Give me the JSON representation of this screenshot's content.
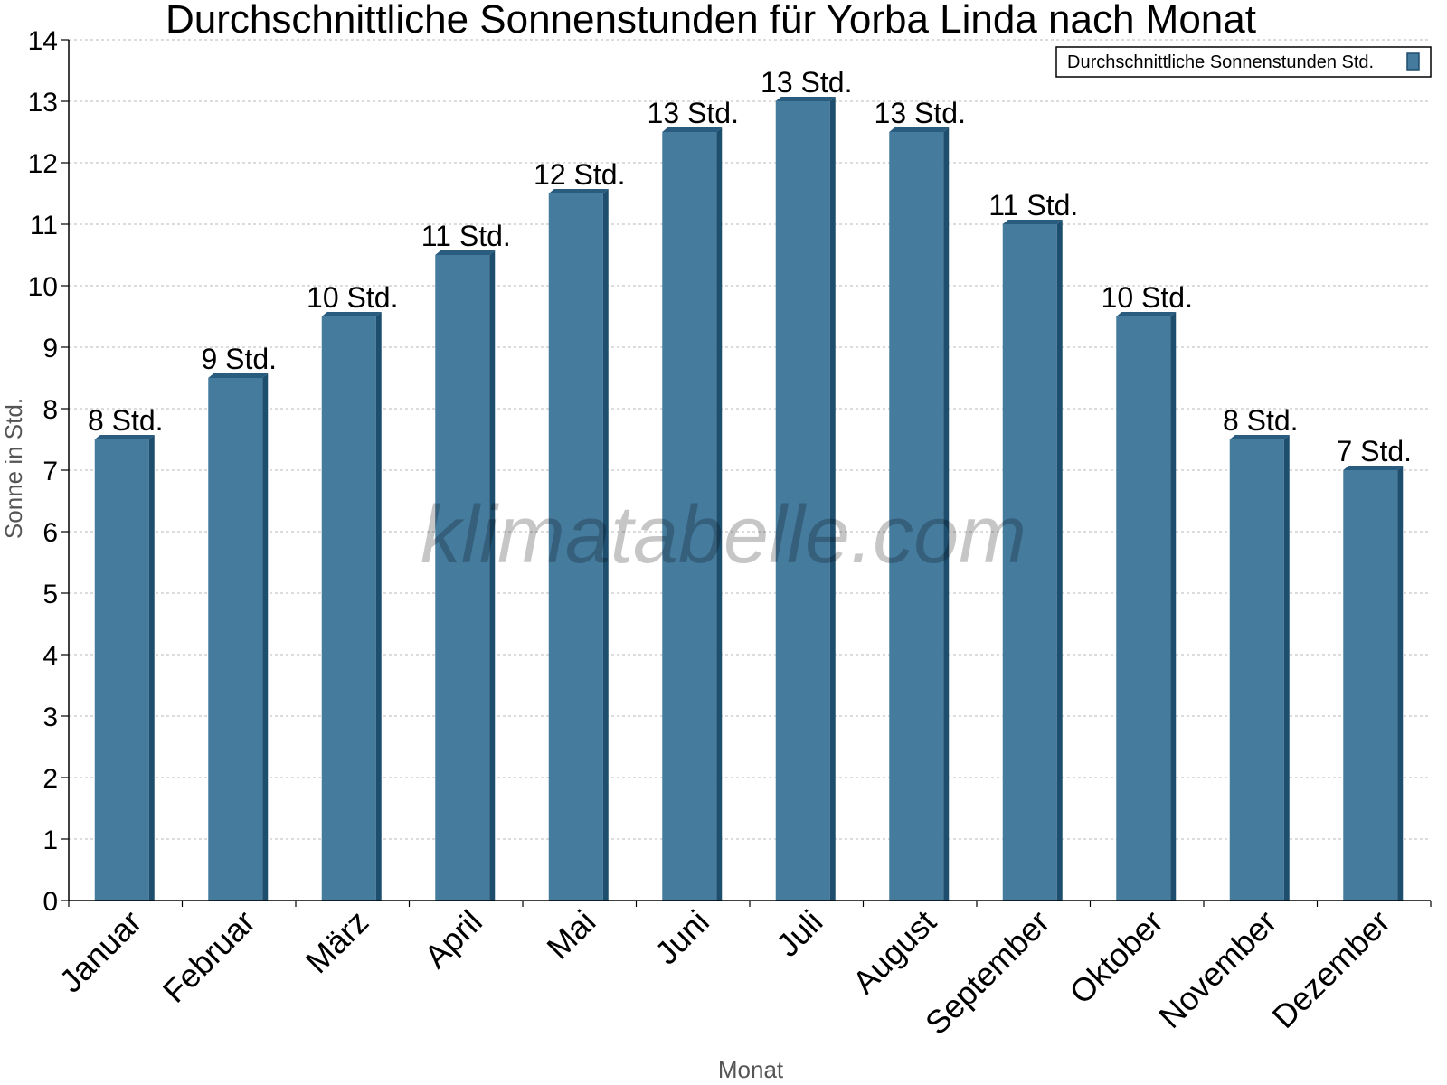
{
  "colors": {
    "bar_face": "#457b9d",
    "bar_side": "#1d4e6e",
    "bar_top": "#2a5c80",
    "grid": "#c8c8c8",
    "axis": "#000000"
  },
  "watermark": "klimatabelle.com",
  "chart_data": {
    "type": "bar",
    "title": "Durchschnittliche Sonnenstunden für Yorba Linda nach Monat",
    "xlabel": "Monat",
    "ylabel": "Sonne in Std.",
    "ylim": [
      0,
      14
    ],
    "yticks": [
      "0",
      "1",
      "2",
      "3",
      "4",
      "5",
      "6",
      "7",
      "8",
      "9",
      "10",
      "11",
      "12",
      "13",
      "14"
    ],
    "grid": true,
    "legend_position": "top-right",
    "categories": [
      "Januar",
      "Februar",
      "März",
      "April",
      "Mai",
      "Juni",
      "Juli",
      "August",
      "September",
      "Oktober",
      "November",
      "Dezember"
    ],
    "series": [
      {
        "name": "Durchschnittliche Sonnenstunden Std.",
        "values": [
          7.5,
          8.5,
          9.5,
          10.5,
          11.5,
          12.5,
          13,
          12.5,
          11,
          9.5,
          7.5,
          7
        ],
        "labels": [
          "8 Std.",
          "9 Std.",
          "10 Std.",
          "11 Std.",
          "12 Std.",
          "13 Std.",
          "13 Std.",
          "13 Std.",
          "11 Std.",
          "10 Std.",
          "8 Std.",
          "7 Std."
        ]
      }
    ]
  }
}
